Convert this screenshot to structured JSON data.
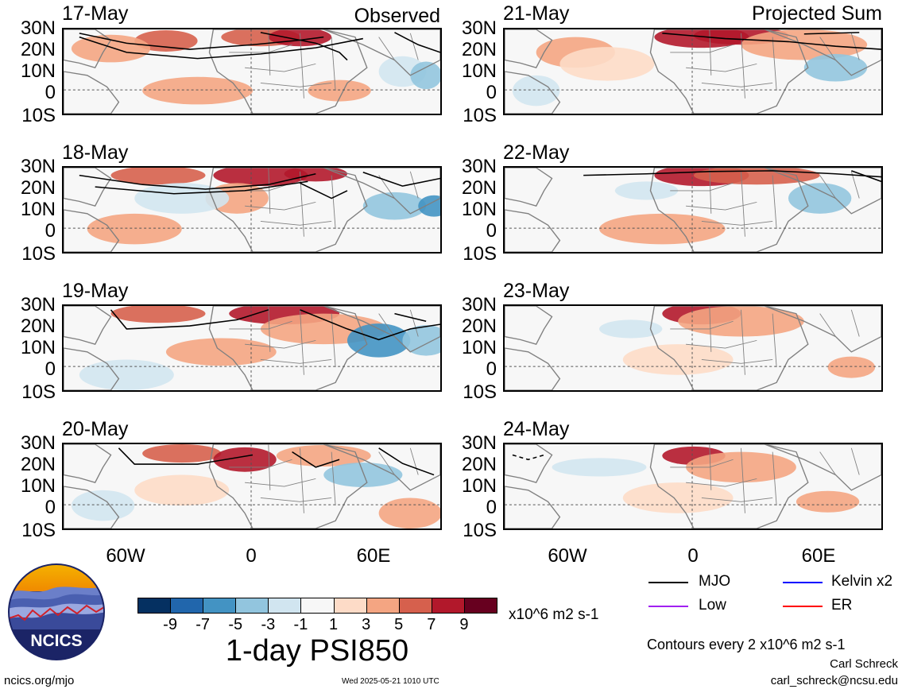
{
  "panels": [
    {
      "date": "17-May",
      "label": "Observed"
    },
    {
      "date": "21-May",
      "label": "Projected Sum"
    },
    {
      "date": "18-May",
      "label": ""
    },
    {
      "date": "22-May",
      "label": ""
    },
    {
      "date": "19-May",
      "label": ""
    },
    {
      "date": "23-May",
      "label": ""
    },
    {
      "date": "20-May",
      "label": ""
    },
    {
      "date": "24-May",
      "label": ""
    }
  ],
  "lat_ticks": [
    "30N",
    "20N",
    "10N",
    "0",
    "10S"
  ],
  "lon_ticks": [
    "60W",
    "0",
    "60E"
  ],
  "colorbar": {
    "colors": [
      "#053061",
      "#2166ac",
      "#4393c3",
      "#92c5de",
      "#d1e5f0",
      "#f7f7f7",
      "#fddbc7",
      "#f4a582",
      "#d6604d",
      "#b2182b",
      "#67001f"
    ],
    "labels": [
      "-9",
      "-7",
      "-5",
      "-3",
      "-1",
      "1",
      "3",
      "5",
      "7",
      "9"
    ],
    "units": "x10^6 m2 s-1"
  },
  "title": "1-day PSI850",
  "legend": [
    {
      "label": "MJO",
      "color": "#000000"
    },
    {
      "label": "Kelvin x2",
      "color": "#0000ff"
    },
    {
      "label": "Low",
      "color": "#a020f0"
    },
    {
      "label": "ER",
      "color": "#ff0000"
    }
  ],
  "contour_note": "Contours every 2 x10^6 m2 s-1",
  "author": "Carl Schreck",
  "email": "carl_schreck@ncsu.edu",
  "website": "ncics.org/mjo",
  "timestamp": "Wed 2025-05-21 1010 UTC",
  "logo_text": "NCICS",
  "colors": {
    "land_border": "#808080",
    "contour": "#000000",
    "zero_line": "#555555"
  }
}
